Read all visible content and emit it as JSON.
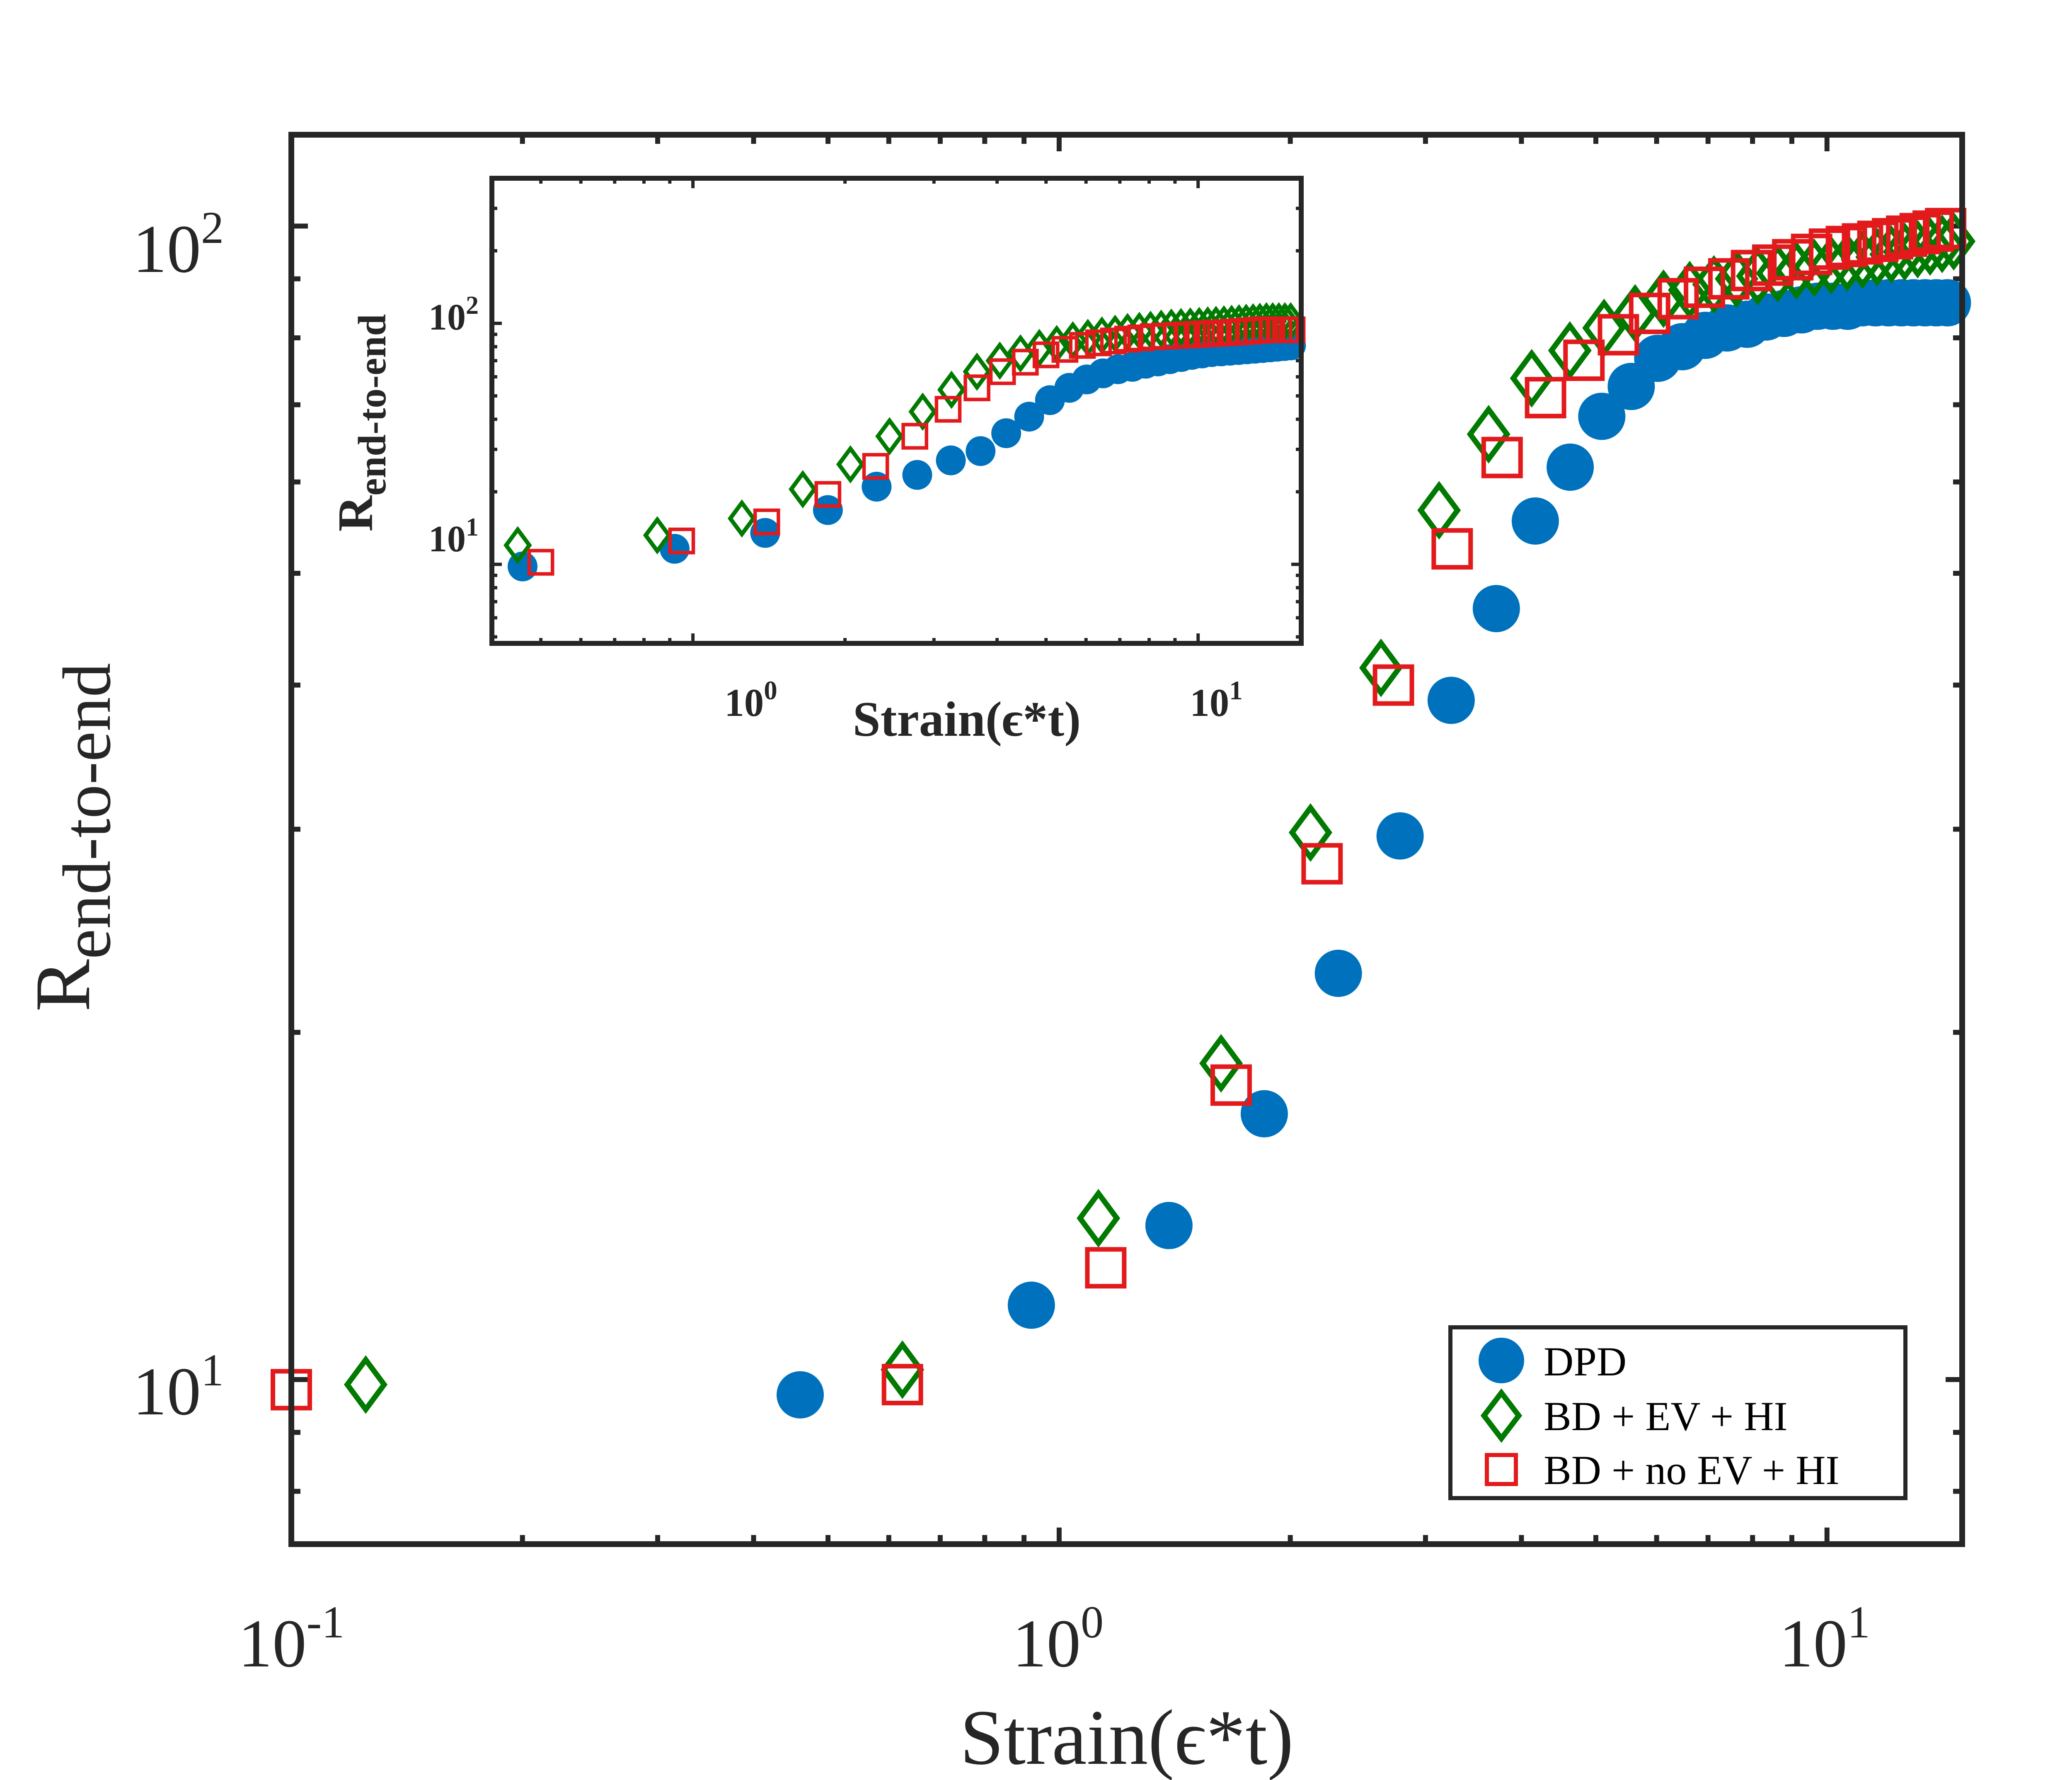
{
  "chart_data": [
    {
      "id": "main",
      "type": "scatter",
      "xscale": "log",
      "yscale": "log",
      "xlim": [
        0.1,
        15
      ],
      "ylim": [
        7.2,
        120
      ],
      "xlabel": "Strain(ϵ*t)",
      "ylabel_base": "R",
      "ylabel_sub": "end-to-end",
      "xticks": [
        {
          "base": "10",
          "exp": "-1",
          "value": 0.1
        },
        {
          "base": "10",
          "exp": "0",
          "value": 1
        },
        {
          "base": "10",
          "exp": "1",
          "value": 10
        }
      ],
      "yticks": [
        {
          "base": "10",
          "exp": "1",
          "value": 10
        },
        {
          "base": "10",
          "exp": "2",
          "value": 100
        }
      ],
      "legend": {
        "position": "bottom-right",
        "entries": [
          "DPD",
          "BD + EV + HI",
          "BD + no EV + HI"
        ]
      },
      "series": [
        {
          "name": "DPD",
          "marker": "circle-filled",
          "color": "#0072BD",
          "x": [
            0.46,
            0.92,
            1.39,
            1.85,
            2.31,
            2.78,
            3.24,
            3.71,
            4.17,
            4.63,
            5.09,
            5.56,
            6.02,
            6.48,
            6.94,
            7.41,
            7.87,
            8.33,
            8.79,
            9.26,
            9.72,
            10.18,
            10.64,
            11.11,
            11.57,
            12.03,
            12.5,
            12.96,
            13.42,
            13.88,
            14.35
          ],
          "y": [
            9.7,
            11.6,
            13.6,
            17.0,
            22.5,
            29.6,
            38.8,
            46.6,
            55.5,
            61.8,
            68.4,
            72.6,
            76.8,
            78.6,
            80.4,
            81.6,
            82.2,
            83.4,
            84.0,
            84.6,
            85.2,
            85.2,
            85.2,
            85.8,
            85.8,
            85.8,
            85.8,
            85.8,
            85.8,
            85.8,
            85.8
          ]
        },
        {
          "name": "BD + EV + HI",
          "marker": "diamond-open",
          "color": "#007A00",
          "x": [
            0.125,
            0.625,
            1.125,
            1.625,
            2.125,
            2.625,
            3.125,
            3.625,
            4.125,
            4.625,
            5.125,
            5.625,
            6.125,
            6.625,
            7.125,
            7.625,
            8.125,
            8.625,
            9.125,
            9.625,
            10.125,
            10.625,
            11.125,
            11.625,
            12.125,
            12.625,
            13.125,
            13.625,
            14.125,
            14.625
          ],
          "y": [
            9.9,
            10.2,
            13.8,
            18.8,
            29.8,
            41.4,
            56.7,
            66.0,
            73.8,
            78.0,
            81.6,
            84.0,
            86.5,
            88.0,
            89.0,
            90.0,
            90.5,
            91.0,
            91.5,
            92.0,
            92.5,
            93.0,
            93.5,
            94.0,
            94.5,
            95.0,
            95.5,
            96.0,
            96.5,
            97.0
          ]
        },
        {
          "name": "BD + no EV + HI",
          "marker": "square-open",
          "color": "#E31A1C",
          "x": [
            0.1,
            0.625,
            1.15,
            1.675,
            2.2,
            2.725,
            3.25,
            3.775,
            4.3,
            4.825,
            5.35,
            5.875,
            6.4,
            6.925,
            7.45,
            7.975,
            8.5,
            9.025,
            9.55,
            10.075,
            10.6,
            11.125,
            11.65,
            12.175,
            12.7,
            13.225,
            13.75,
            14.275
          ],
          "y": [
            9.8,
            9.9,
            12.5,
            18.0,
            28.0,
            40.0,
            52.5,
            63.0,
            71.0,
            76.5,
            80.5,
            84.0,
            86.5,
            88.5,
            90.0,
            91.5,
            92.5,
            93.5,
            94.5,
            95.5,
            96.0,
            96.5,
            97.0,
            97.5,
            98.0,
            98.5,
            99.0,
            99.5
          ]
        }
      ]
    },
    {
      "id": "inset",
      "type": "scatter",
      "xscale": "log",
      "yscale": "log",
      "xlim": [
        0.4,
        16
      ],
      "ylim": [
        4.7,
        400
      ],
      "xlabel": "Strain(ϵ*t)",
      "ylabel_base": "R",
      "ylabel_sub": "end-to-end",
      "xticks": [
        {
          "base": "10",
          "exp": "0",
          "value": 1
        },
        {
          "base": "10",
          "exp": "1",
          "value": 10
        }
      ],
      "yticks": [
        {
          "base": "10",
          "exp": "1",
          "value": 10
        },
        {
          "base": "10",
          "exp": "2",
          "value": 100
        }
      ],
      "series": [
        {
          "name": "DPD",
          "marker": "circle-filled",
          "color": "#0072BD",
          "x": [
            0.46,
            0.92,
            1.39,
            1.85,
            2.31,
            2.78,
            3.24,
            3.71,
            4.17,
            4.63,
            5.09,
            5.56,
            6.02,
            6.48,
            6.94,
            7.41,
            7.87,
            8.33,
            8.79,
            9.26,
            9.72,
            10.18,
            10.64,
            11.11,
            11.57,
            12.03,
            12.5,
            12.96,
            13.42,
            13.88,
            14.35,
            14.81,
            15.27
          ],
          "y": [
            9.8,
            11.6,
            13.5,
            16.8,
            21.0,
            23.5,
            27.0,
            29.5,
            35.0,
            41.0,
            48.0,
            54.0,
            58.5,
            62.0,
            64.5,
            66.0,
            68.0,
            69.5,
            71.0,
            72.5,
            74.0,
            75.0,
            76.0,
            76.5,
            77.0,
            77.5,
            78.0,
            78.5,
            79.0,
            79.5,
            80.0,
            80.5,
            81.0
          ]
        },
        {
          "name": "BD + EV + HI",
          "marker": "diamond-open",
          "color": "#007A00",
          "x": [
            0.45,
            0.85,
            1.25,
            1.65,
            2.05,
            2.45,
            2.85,
            3.25,
            3.65,
            4.05,
            4.45,
            4.85,
            5.25,
            5.65,
            6.05,
            6.45,
            6.85,
            7.25,
            7.65,
            8.05,
            8.45,
            8.85,
            9.25,
            9.65,
            10.05,
            10.45,
            10.85,
            11.25,
            11.65,
            12.05,
            12.45,
            12.85,
            13.25,
            13.65,
            14.05,
            14.45,
            14.85,
            15.25
          ],
          "y": [
            12.0,
            13.2,
            15.5,
            20.5,
            26.0,
            34.0,
            43.0,
            53.0,
            63.0,
            70.0,
            75.0,
            79.0,
            82.0,
            85.0,
            87.0,
            89.0,
            90.5,
            92.0,
            93.0,
            94.0,
            95.0,
            96.0,
            96.5,
            97.0,
            97.5,
            98.0,
            98.5,
            99.0,
            99.5,
            100.0,
            100.5,
            101.0,
            101.5,
            102.0,
            102.0,
            102.0,
            102.0,
            102.0
          ]
        },
        {
          "name": "BD + no EV + HI",
          "marker": "square-open",
          "color": "#E31A1C",
          "x": [
            0.5,
            0.95,
            1.4,
            1.85,
            2.3,
            2.75,
            3.2,
            3.65,
            4.1,
            4.55,
            5.0,
            5.45,
            5.9,
            6.35,
            6.8,
            7.25,
            7.7,
            8.15,
            8.6,
            9.05,
            9.5,
            9.95,
            10.4,
            10.85,
            11.3,
            11.75,
            12.2,
            12.65,
            13.1,
            13.55,
            14.0,
            14.45,
            14.9,
            15.35
          ],
          "y": [
            10.2,
            12.5,
            15.0,
            19.5,
            25.5,
            34.0,
            44.0,
            54.0,
            63.0,
            69.0,
            74.0,
            78.0,
            81.0,
            83.0,
            84.5,
            86.0,
            87.0,
            88.0,
            88.5,
            89.0,
            89.5,
            90.0,
            90.5,
            91.0,
            91.5,
            92.0,
            92.5,
            93.0,
            93.5,
            94.0,
            94.0,
            94.0,
            94.0,
            94.0
          ]
        }
      ]
    }
  ]
}
